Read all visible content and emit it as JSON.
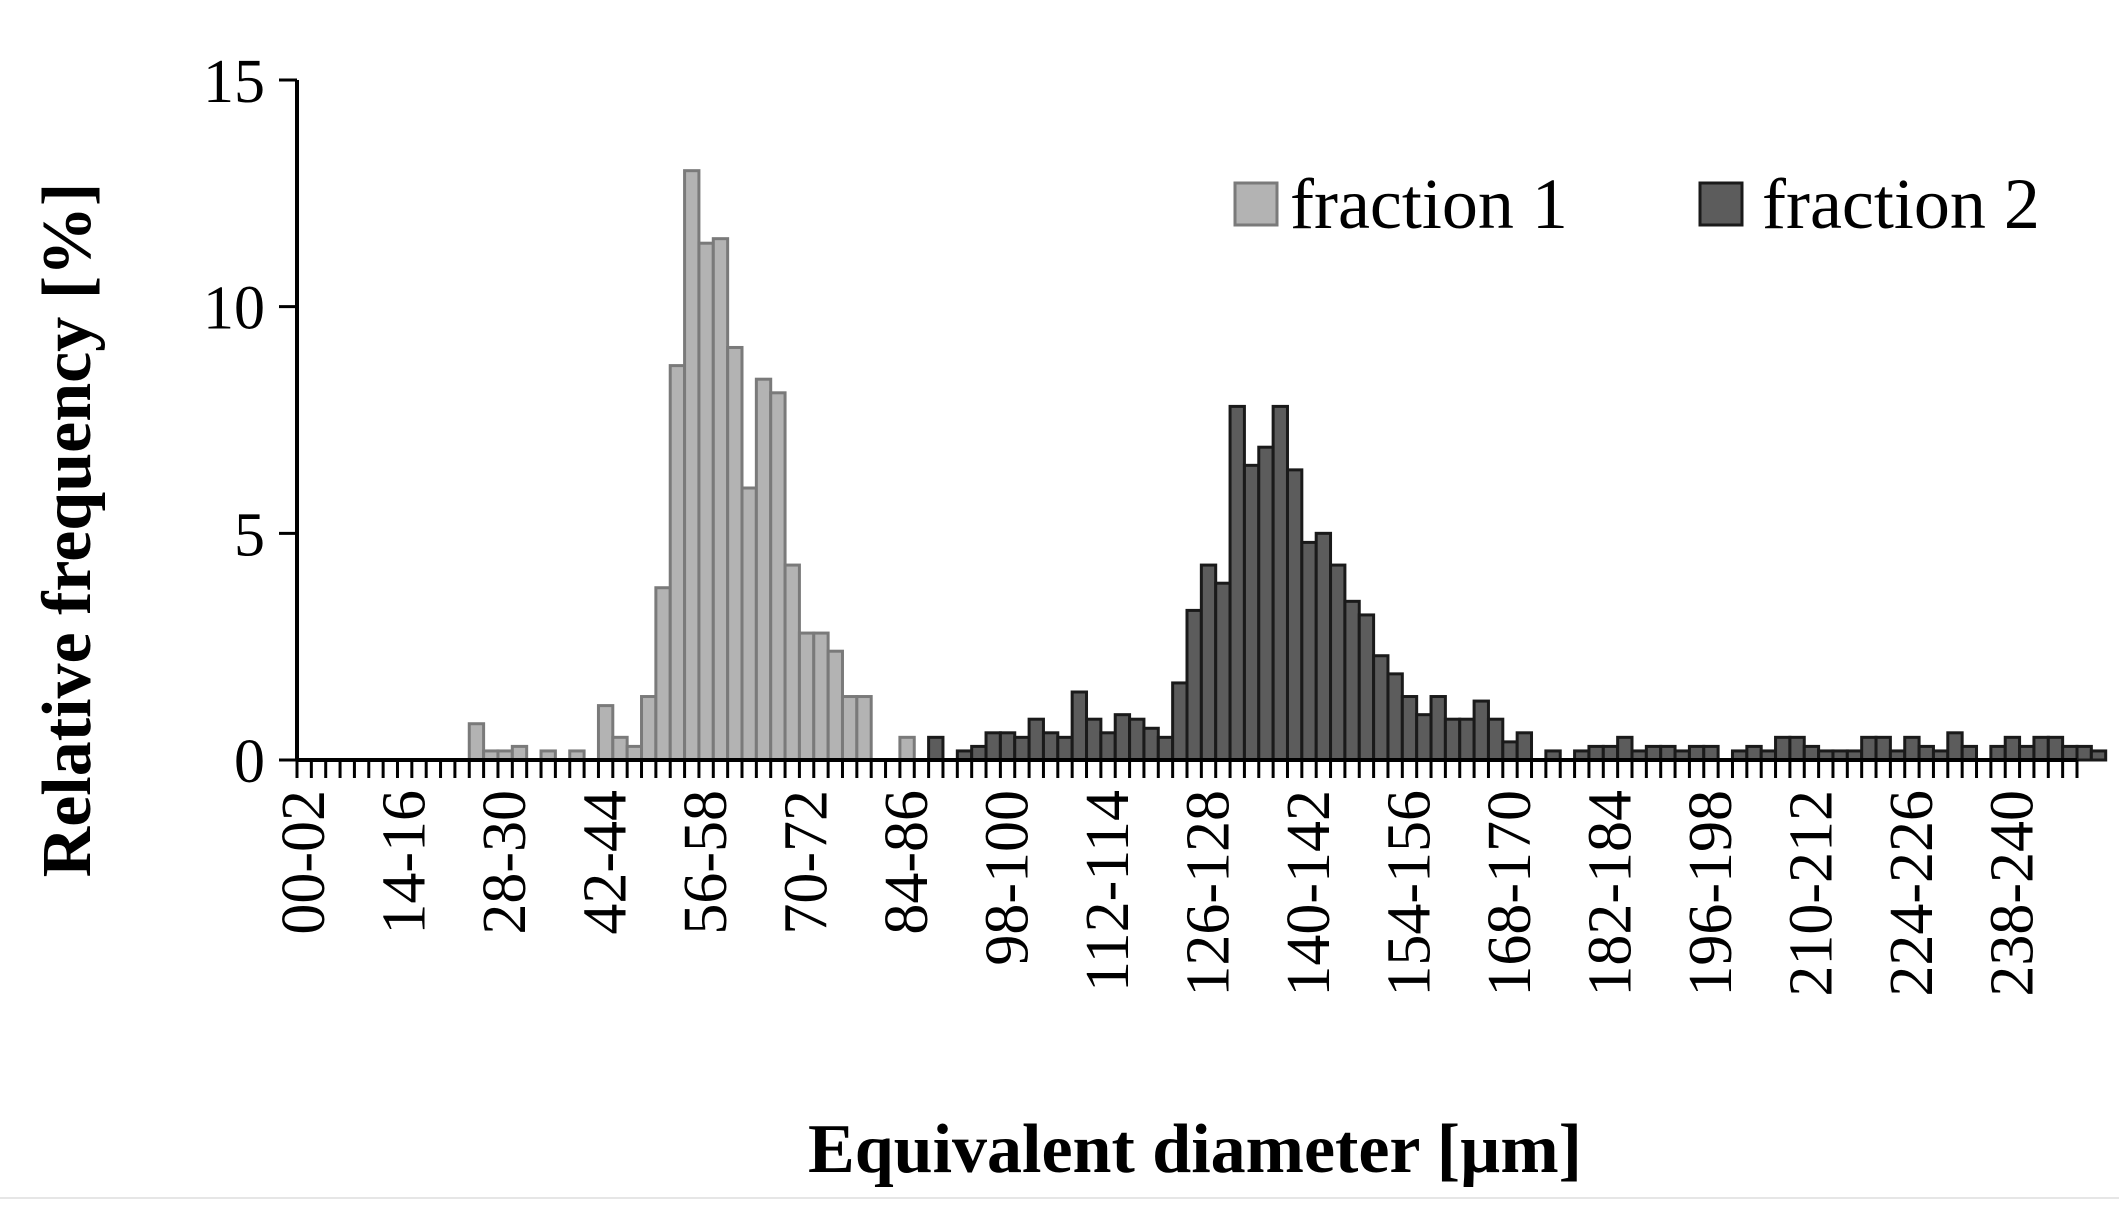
{
  "chart_data": {
    "type": "bar",
    "xlabel": "Equivalent diameter [µm]",
    "ylabel": "Relative frequency [%]",
    "ylim": [
      0,
      15
    ],
    "yticks": [
      0,
      5,
      10,
      15
    ],
    "grid": false,
    "legend_position": "top-right",
    "bin_width": 2,
    "bin_start": 0,
    "bin_count": 124,
    "x_tick_labels": [
      "00-02",
      "14-16",
      "28-30",
      "42-44",
      "56-58",
      "70-72",
      "84-86",
      "98-100",
      "112-114",
      "126-128",
      "140-142",
      "154-156",
      "168-170",
      "182-184",
      "196-198",
      "210-212",
      "224-226",
      "238-240"
    ],
    "series": [
      {
        "name": "fraction 1",
        "color": "#b3b3b3",
        "stroke": "#7a7a7a",
        "bin_index_start": 0,
        "values": [
          0,
          0,
          0,
          0,
          0,
          0,
          0,
          0,
          0,
          0,
          0,
          0,
          0.8,
          0.2,
          0.2,
          0.3,
          0,
          0.2,
          0,
          0.2,
          0,
          1.2,
          0.5,
          0.3,
          1.4,
          3.8,
          8.7,
          13,
          11.4,
          11.5,
          9.1,
          6,
          8.4,
          8.1,
          4.3,
          2.8,
          2.8,
          2.4,
          1.4,
          1.4,
          0,
          0,
          0.5
        ]
      },
      {
        "name": "fraction 2",
        "color": "#5c5c5c",
        "stroke": "#1a1a1a",
        "bin_index_start": 43,
        "values": [
          0,
          0.5,
          0,
          0.2,
          0.3,
          0.6,
          0.6,
          0.5,
          0.9,
          0.6,
          0.5,
          1.5,
          0.9,
          0.6,
          1,
          0.9,
          0.7,
          0.5,
          1.7,
          3.3,
          4.3,
          3.9,
          7.8,
          6.5,
          6.9,
          7.8,
          6.4,
          4.8,
          5,
          4.3,
          3.5,
          3.2,
          2.3,
          1.9,
          1.4,
          1,
          1.4,
          0.9,
          0.9,
          1.3,
          0.9,
          0.4,
          0.6,
          0,
          0.2,
          0,
          0.2,
          0.3,
          0.3,
          0.5,
          0.2,
          0.3,
          0.3,
          0.2,
          0.3,
          0.3,
          0,
          0.2,
          0.3,
          0.2,
          0.5,
          0.5,
          0.3,
          0.2,
          0.2,
          0.2,
          0.5,
          0.5,
          0.2,
          0.5,
          0.3,
          0.2,
          0.6,
          0.3,
          0,
          0.3,
          0.5,
          0.3,
          0.5,
          0.5,
          0.3,
          0.3,
          0.2
        ]
      }
    ]
  }
}
